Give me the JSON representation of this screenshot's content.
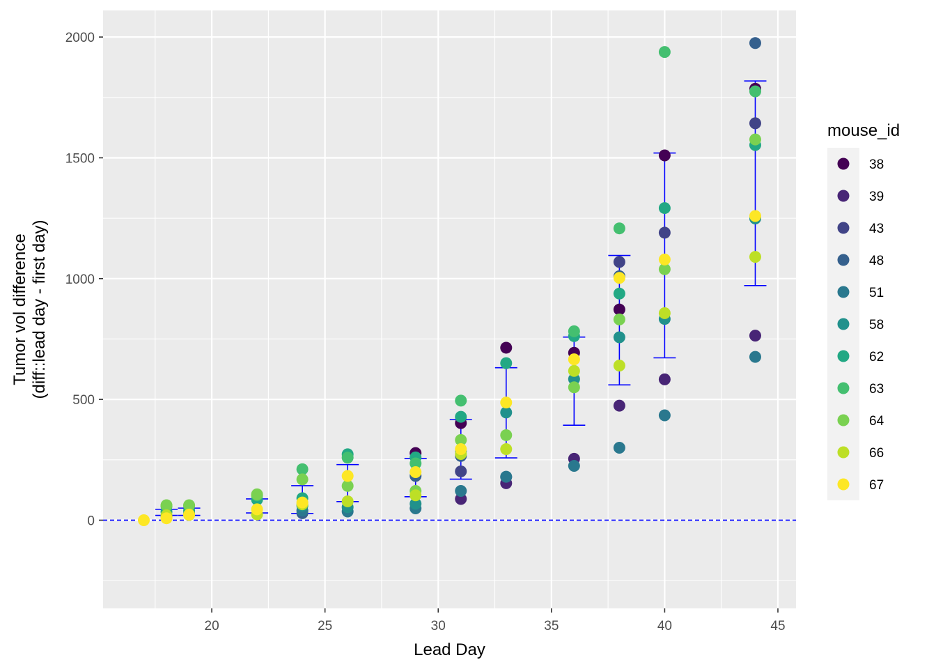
{
  "chart_data": {
    "type": "scatter",
    "xlabel": "Lead Day",
    "ylabel_lines": [
      "Tumor vol difference",
      "(diff::lead day - first day)"
    ],
    "xlim": [
      15.2,
      45.8
    ],
    "ylim": [
      -365,
      2110
    ],
    "x_ticks": [
      20,
      25,
      30,
      35,
      40,
      45
    ],
    "y_ticks": [
      0,
      500,
      1000,
      1500,
      2000
    ],
    "grid": true,
    "reference_line": {
      "y": 0,
      "style": "dashed",
      "color": "#0000ff"
    },
    "legend": {
      "title": "mouse_id",
      "position": "right"
    },
    "series": [
      {
        "name": "38",
        "color": "#440154",
        "points": [
          [
            29,
            278
          ],
          [
            31,
            402
          ],
          [
            33,
            714
          ],
          [
            36,
            693
          ],
          [
            38,
            872
          ],
          [
            40,
            1510
          ],
          [
            44,
            1786
          ]
        ]
      },
      {
        "name": "39",
        "color": "#482576",
        "points": [
          [
            31,
            88
          ],
          [
            33,
            153
          ],
          [
            36,
            254
          ],
          [
            38,
            474
          ],
          [
            40,
            583
          ],
          [
            44,
            764
          ]
        ]
      },
      {
        "name": "43",
        "color": "#414487",
        "points": [
          [
            31,
            202
          ],
          [
            33,
            179
          ],
          [
            38,
            1069
          ],
          [
            40,
            1190
          ],
          [
            44,
            1643
          ]
        ]
      },
      {
        "name": "48",
        "color": "#35608d",
        "points": [
          [
            24,
            29
          ],
          [
            29,
            183
          ],
          [
            31,
            266
          ],
          [
            38,
            1010
          ],
          [
            44,
            1975
          ]
        ]
      },
      {
        "name": "51",
        "color": "#2a788e",
        "points": [
          [
            18,
            17
          ],
          [
            24,
            40
          ],
          [
            26,
            36
          ],
          [
            29,
            49
          ],
          [
            31,
            121
          ],
          [
            33,
            180
          ],
          [
            36,
            225
          ],
          [
            38,
            300
          ],
          [
            40,
            434
          ],
          [
            44,
            676
          ]
        ]
      },
      {
        "name": "58",
        "color": "#21918c",
        "points": [
          [
            19,
            30
          ],
          [
            24,
            60
          ],
          [
            26,
            54
          ],
          [
            29,
            68
          ],
          [
            31,
            286
          ],
          [
            33,
            446
          ],
          [
            36,
            584
          ],
          [
            38,
            757
          ],
          [
            40,
            833
          ],
          [
            44,
            1249
          ]
        ]
      },
      {
        "name": "62",
        "color": "#22a884",
        "points": [
          [
            18,
            35
          ],
          [
            19,
            40
          ],
          [
            22,
            85
          ],
          [
            24,
            91
          ],
          [
            26,
            273
          ],
          [
            29,
            260
          ],
          [
            31,
            428
          ],
          [
            33,
            650
          ],
          [
            36,
            762
          ],
          [
            38,
            938
          ],
          [
            40,
            1292
          ],
          [
            44,
            1553
          ]
        ]
      },
      {
        "name": "63",
        "color": "#44bf70",
        "points": [
          [
            18,
            58
          ],
          [
            19,
            60
          ],
          [
            22,
            103
          ],
          [
            24,
            211
          ],
          [
            26,
            259
          ],
          [
            29,
            235
          ],
          [
            31,
            495
          ],
          [
            36,
            782
          ],
          [
            38,
            1208
          ],
          [
            40,
            1938
          ],
          [
            44,
            1775
          ]
        ]
      },
      {
        "name": "64",
        "color": "#7ad151",
        "points": [
          [
            18,
            62
          ],
          [
            19,
            62
          ],
          [
            22,
            107
          ],
          [
            24,
            169
          ],
          [
            26,
            142
          ],
          [
            29,
            121
          ],
          [
            31,
            332
          ],
          [
            33,
            352
          ],
          [
            36,
            550
          ],
          [
            38,
            831
          ],
          [
            40,
            1039
          ],
          [
            44,
            1576
          ]
        ]
      },
      {
        "name": "66",
        "color": "#bddf26",
        "points": [
          [
            18,
            20
          ],
          [
            19,
            22
          ],
          [
            22,
            24
          ],
          [
            24,
            66
          ],
          [
            26,
            78
          ],
          [
            29,
            103
          ],
          [
            31,
            274
          ],
          [
            33,
            294
          ],
          [
            36,
            618
          ],
          [
            38,
            640
          ],
          [
            40,
            857
          ],
          [
            44,
            1090
          ]
        ]
      },
      {
        "name": "67",
        "color": "#fde725",
        "points": [
          [
            17,
            0
          ],
          [
            18,
            8
          ],
          [
            19,
            23
          ],
          [
            22,
            45
          ],
          [
            24,
            73
          ],
          [
            26,
            183
          ],
          [
            29,
            199
          ],
          [
            31,
            294
          ],
          [
            33,
            487
          ],
          [
            36,
            666
          ],
          [
            38,
            1003
          ],
          [
            40,
            1079
          ],
          [
            44,
            1259
          ]
        ]
      }
    ],
    "error_bars": {
      "color": "#0000ff",
      "items": [
        {
          "x": 18,
          "low": 20,
          "high": 45
        },
        {
          "x": 19,
          "low": 20,
          "high": 50
        },
        {
          "x": 22,
          "low": 30,
          "high": 88
        },
        {
          "x": 24,
          "low": 28,
          "high": 143
        },
        {
          "x": 26,
          "low": 77,
          "high": 230
        },
        {
          "x": 29,
          "low": 97,
          "high": 255
        },
        {
          "x": 31,
          "low": 170,
          "high": 416
        },
        {
          "x": 33,
          "low": 258,
          "high": 631
        },
        {
          "x": 36,
          "low": 393,
          "high": 758
        },
        {
          "x": 38,
          "low": 560,
          "high": 1096
        },
        {
          "x": 40,
          "low": 672,
          "high": 1520
        },
        {
          "x": 44,
          "low": 971,
          "high": 1818
        }
      ]
    }
  }
}
